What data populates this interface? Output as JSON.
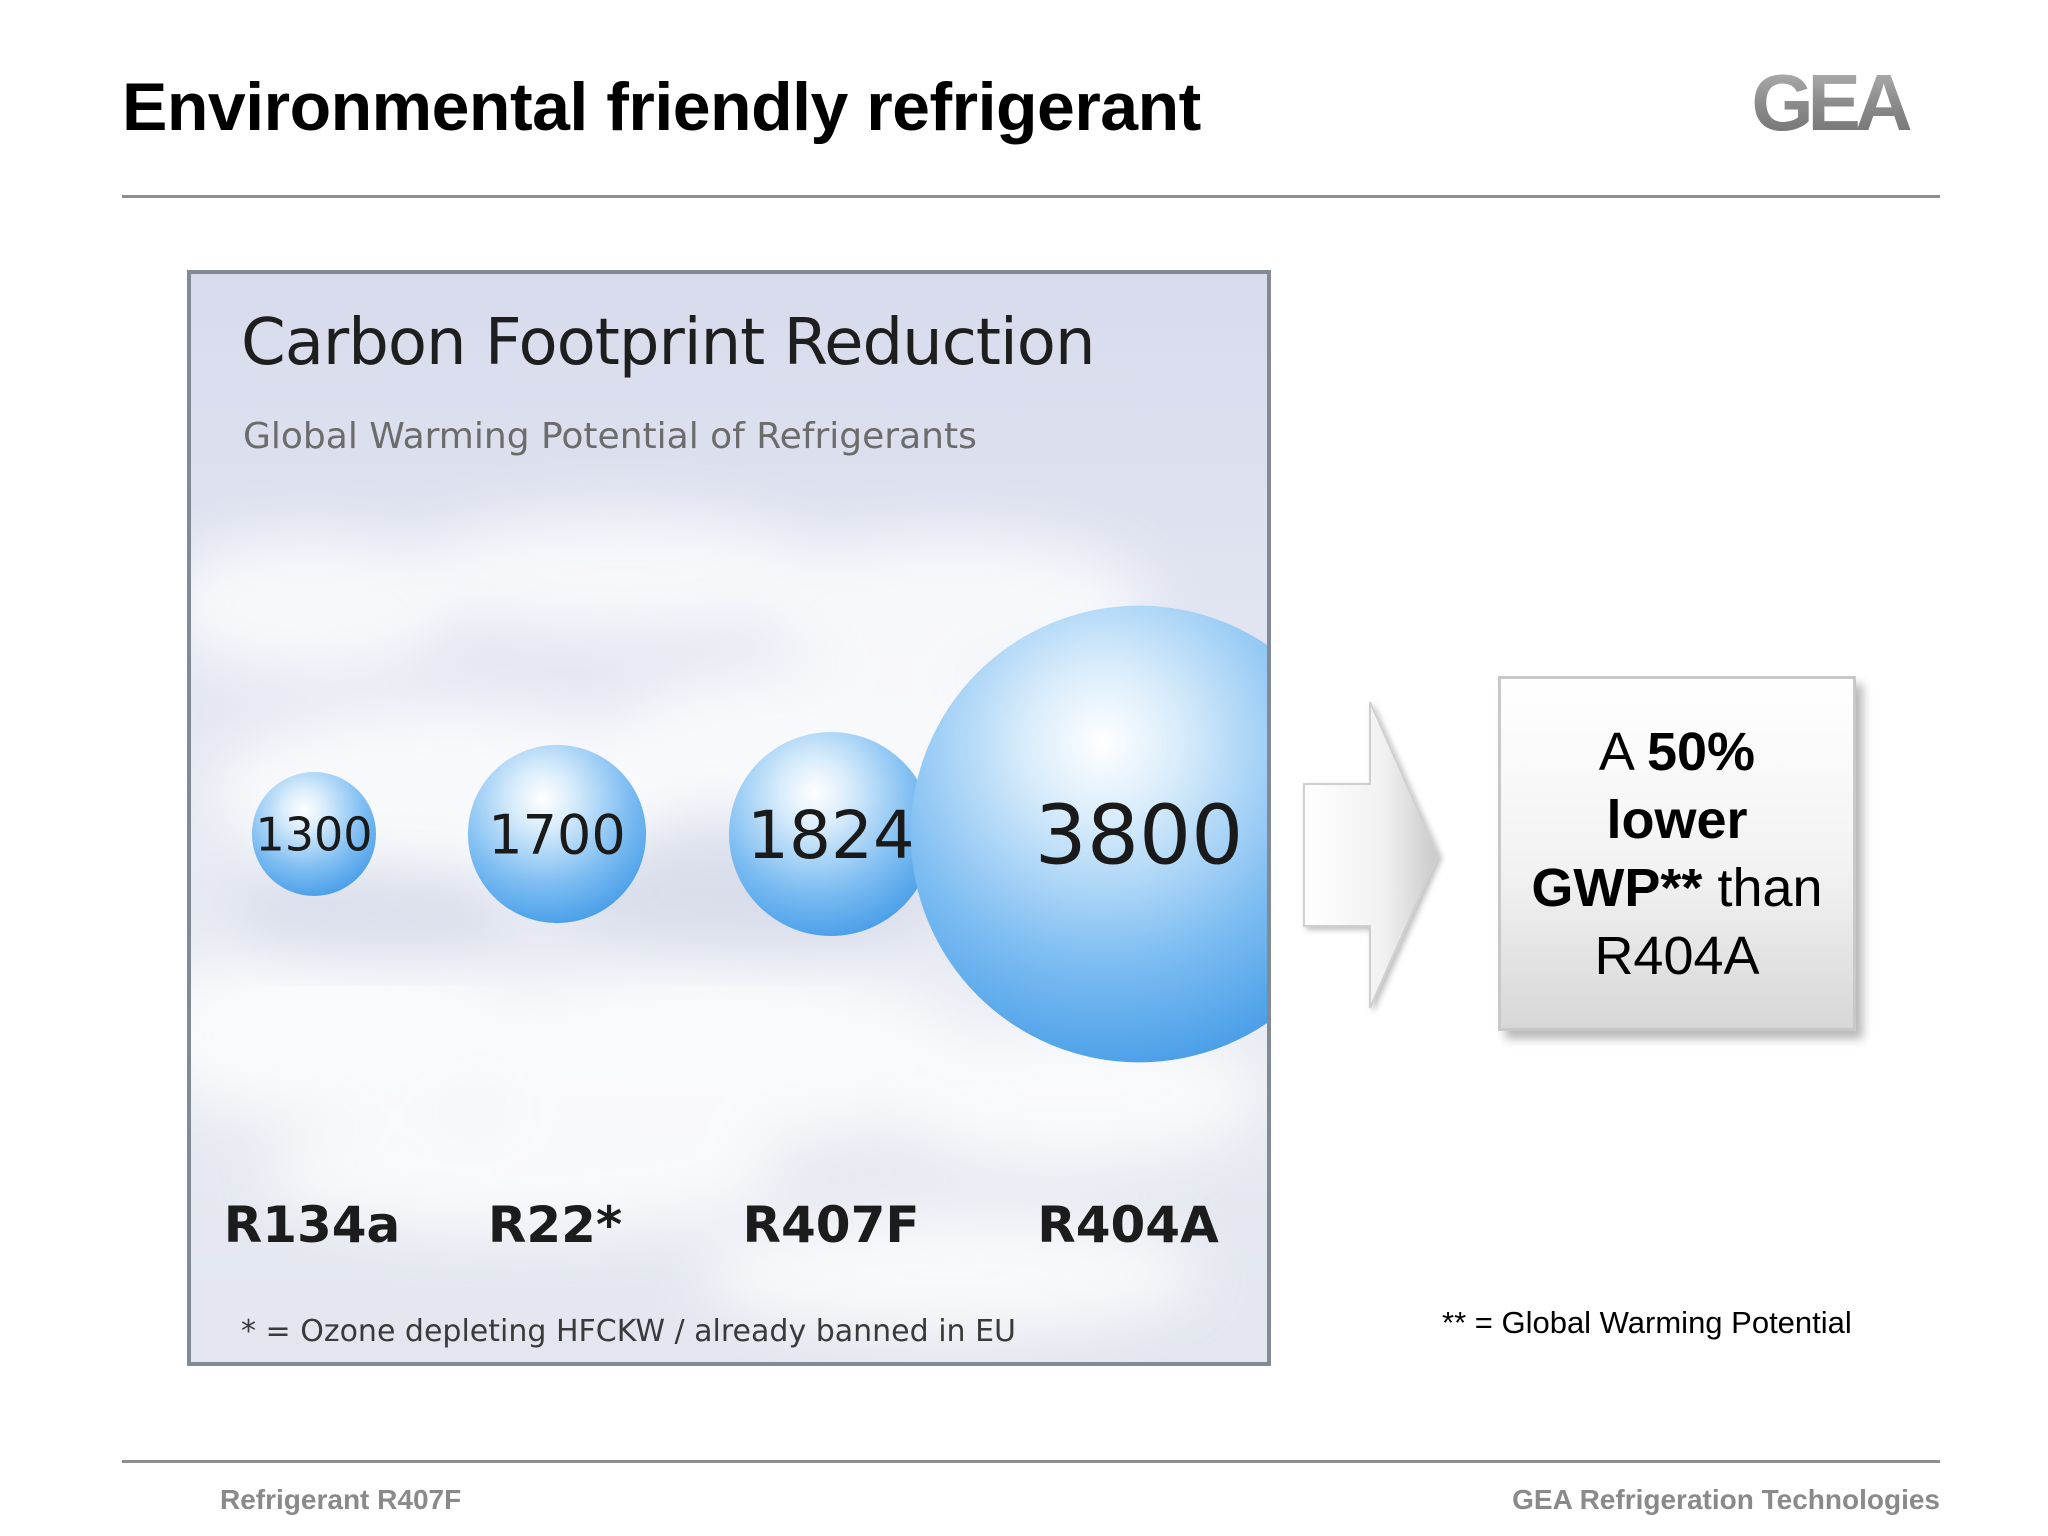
{
  "slide": {
    "title": "Environmental friendly refrigerant"
  },
  "logo": {
    "text": "GEA"
  },
  "chart_data": {
    "type": "bubble",
    "title": "Carbon Footprint Reduction",
    "subtitle": "Global Warming Potential of Refrigerants",
    "categories": [
      "R134a",
      "R22*",
      "R407F",
      "R404A"
    ],
    "values": [
      1300,
      1700,
      1824,
      3800
    ],
    "value_labels": [
      "1300",
      "1700",
      "1824",
      "3800"
    ],
    "bubble_color": "#5aaaf0",
    "footnote": "* = Ozone depleting HFCKW / already banned in EU"
  },
  "callout": {
    "prefix": "A",
    "bold_1": "50%",
    "bold_2": "lower",
    "bold_3": "GWP**",
    "mid": "than",
    "suffix": "R404A"
  },
  "gwp_note": "** = Global Warming Potential",
  "footer": {
    "left": "Refrigerant R407F",
    "right": "GEA Refrigeration Technologies"
  }
}
